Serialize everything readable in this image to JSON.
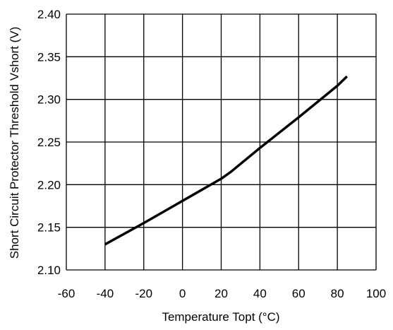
{
  "chart_data": {
    "type": "line",
    "title": "",
    "xlabel": "Temperature Topt (°C)",
    "ylabel": "Short Circuit Protector Threshold Vshort (V)",
    "xlim": [
      -60,
      100
    ],
    "ylim": [
      2.1,
      2.4
    ],
    "xticks": [
      -60,
      -40,
      -20,
      0,
      20,
      40,
      60,
      80,
      100
    ],
    "yticks": [
      2.1,
      2.15,
      2.2,
      2.25,
      2.3,
      2.35,
      2.4
    ],
    "xtick_labels": [
      "-60",
      "-40",
      "-20",
      "0",
      "20",
      "40",
      "60",
      "80",
      "100"
    ],
    "ytick_labels": [
      "2.10",
      "2.15",
      "2.20",
      "2.25",
      "2.30",
      "2.35",
      "2.40"
    ],
    "grid": true,
    "legend": "none",
    "series": [
      {
        "color": "#000000",
        "x": [
          -40,
          -20,
          0,
          20,
          25,
          40,
          60,
          80,
          85
        ],
        "y": [
          2.13,
          2.155,
          2.181,
          2.207,
          2.215,
          2.243,
          2.279,
          2.316,
          2.327
        ]
      }
    ]
  }
}
